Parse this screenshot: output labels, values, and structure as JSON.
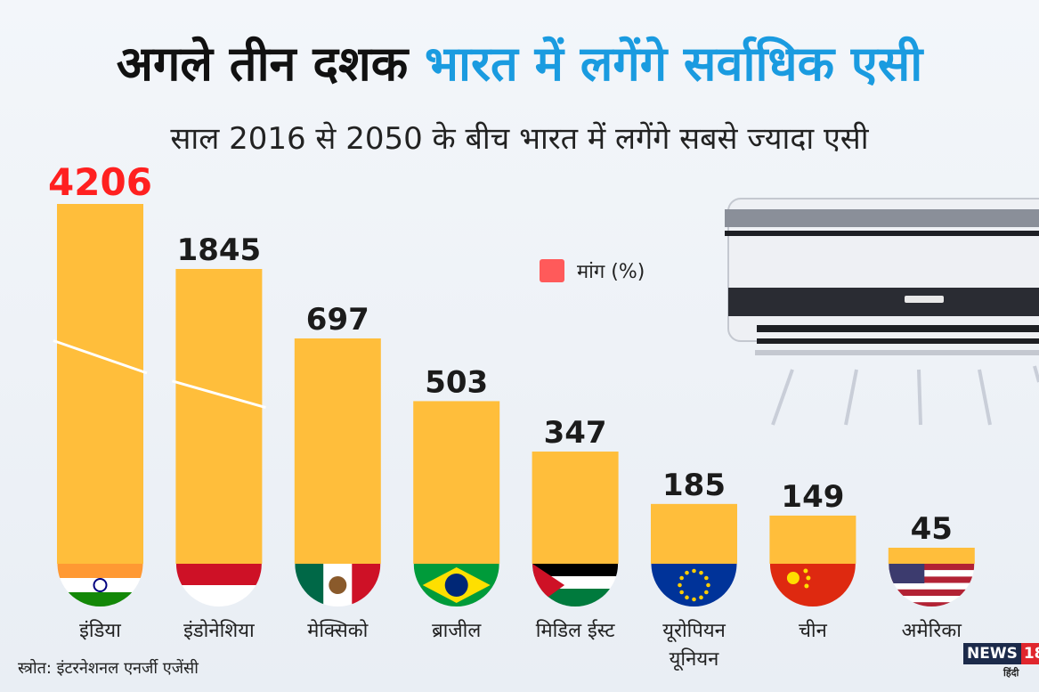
{
  "title": {
    "part1": "अगले तीन दशक",
    "part2": "भारत में लगेंगे सर्वाधिक एसी"
  },
  "subtitle": "साल 2016 से 2050 के बीच भारत में लगेंगे सबसे ज्यादा एसी",
  "legend": {
    "label": "मांग (%)",
    "color": "#ff5a5a"
  },
  "source": "स्त्रोत: इंटरनेशनल एनर्जी एजेंसी",
  "logo": {
    "brand": "NEWS",
    "number": "18",
    "sub": "हिंदी"
  },
  "colors": {
    "bar": "#ffbe3b",
    "value_highlight": "#ff2020",
    "value": "#1b1b1b"
  },
  "chart_data": {
    "type": "bar",
    "categories": [
      "इंडिया",
      "इंडोनेशिया",
      "मेक्सिको",
      "ब्राजील",
      "मिडिल ईस्ट",
      "यूरोपियन यूनियन",
      "चीन",
      "अमेरिका"
    ],
    "values": [
      4206,
      1845,
      697,
      503,
      347,
      185,
      149,
      45
    ],
    "flags": [
      "india-flag",
      "indonesia-flag",
      "mexico-flag",
      "brazil-flag",
      "palestine-flag",
      "eu-flag",
      "china-flag",
      "usa-flag"
    ],
    "broken_axis_bars": [
      "इंडिया",
      "इंडोनेशिया"
    ],
    "legend_placement": "top-center",
    "grid": false
  }
}
